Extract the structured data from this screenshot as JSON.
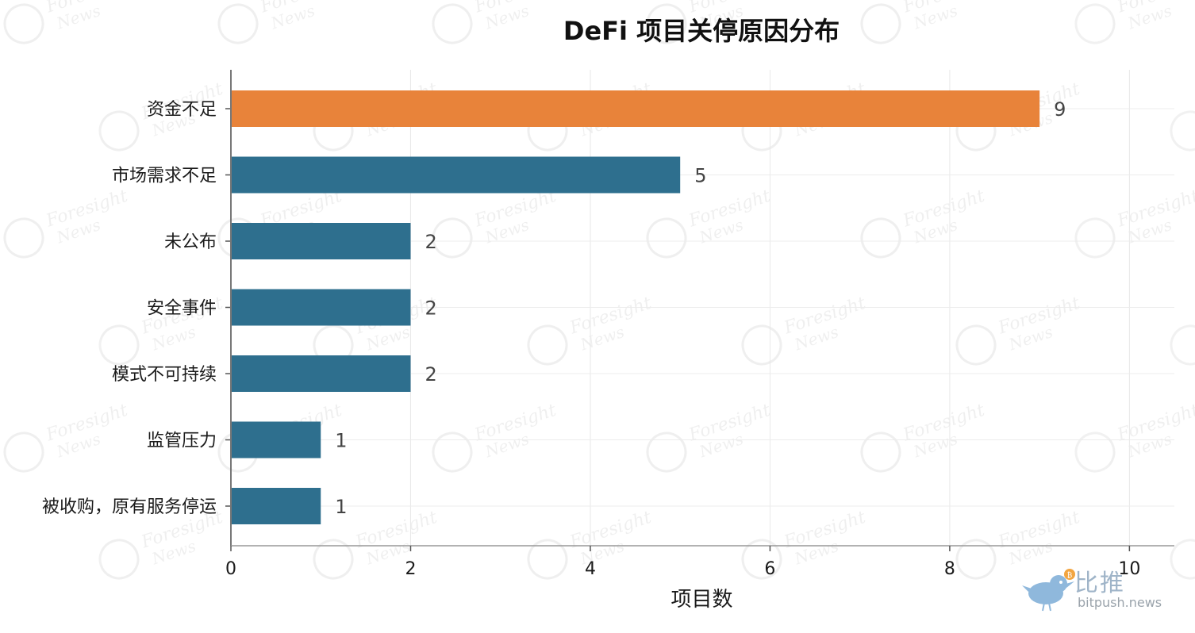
{
  "chart_data": {
    "type": "bar",
    "orientation": "horizontal",
    "title": "DeFi 项目关停原因分布",
    "xlabel": "项目数",
    "ylabel": "",
    "xlim": [
      0,
      10.5
    ],
    "xticks": [
      0,
      2,
      4,
      6,
      8,
      10
    ],
    "grid": true,
    "categories": [
      "资金不足",
      "市场需求不足",
      "未公布",
      "安全事件",
      "模式不可持续",
      "监管压力",
      "被收购，原有服务停运"
    ],
    "values": [
      9,
      5,
      2,
      2,
      2,
      1,
      1
    ],
    "bar_colors": [
      "#e8833a",
      "#2e6f8e",
      "#2e6f8e",
      "#2e6f8e",
      "#2e6f8e",
      "#2e6f8e",
      "#2e6f8e"
    ],
    "highlight_color": "#e8833a",
    "bar_color": "#2e6f8e"
  },
  "watermarks": {
    "tile_text_line1": "Foresight",
    "tile_text_line2": "News",
    "brand_cn": "比推",
    "brand_url": "bitpush.news"
  },
  "icons": {
    "brand_logo": "bird-icon",
    "tile_logo": "foresight-news-logo"
  }
}
